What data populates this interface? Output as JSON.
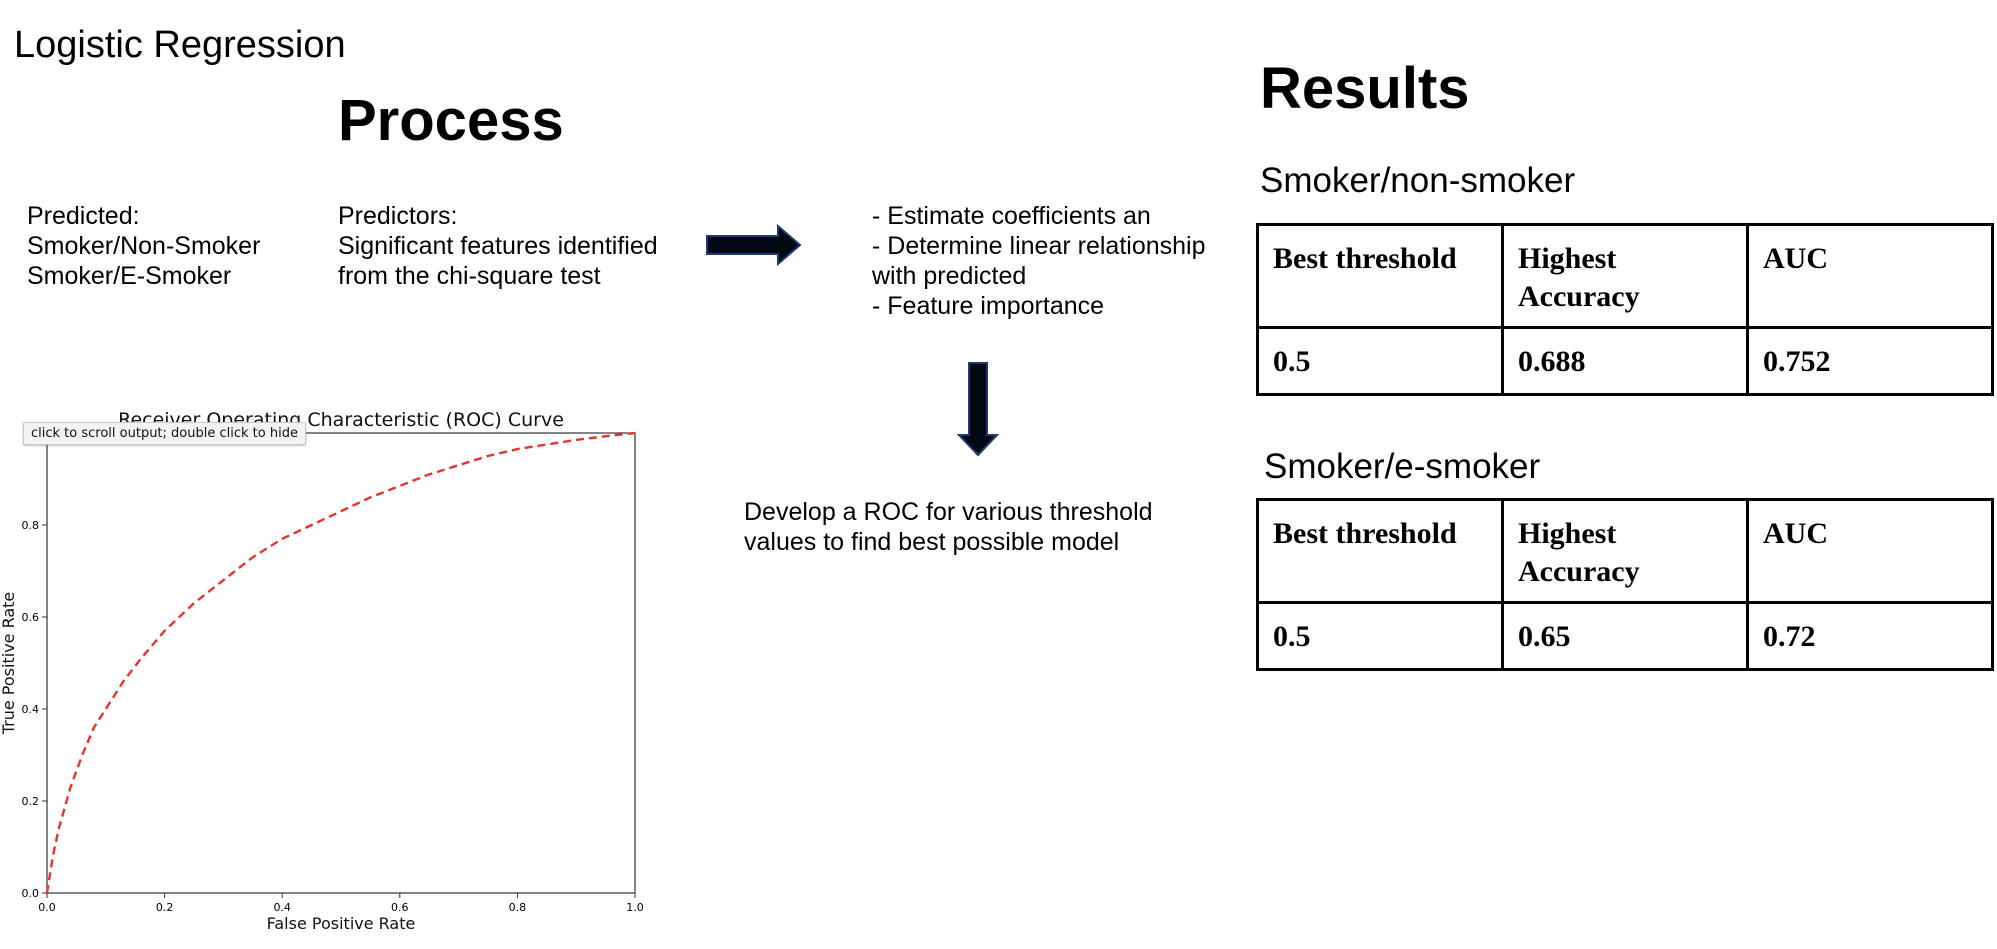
{
  "slide": {
    "title": "Logistic Regression",
    "process_heading": "Process",
    "results_heading": "Results"
  },
  "process": {
    "predicted": "Predicted:\nSmoker/Non-Smoker\nSmoker/E-Smoker",
    "predictors": "Predictors:\nSignificant features identified\nfrom the chi-square test",
    "steps": "- Estimate coefficients an\n- Determine linear relationship\nwith predicted\n- Feature importance",
    "develop": "Develop a ROC for various threshold\nvalues to find best possible model"
  },
  "results": {
    "tables": [
      {
        "subtitle": "Smoker/non-smoker",
        "headers": [
          "Best threshold",
          "Highest\nAccuracy",
          "AUC"
        ],
        "values": [
          "0.5",
          "0.688",
          "0.752"
        ]
      },
      {
        "subtitle": "Smoker/e-smoker",
        "headers": [
          "Best threshold",
          "Highest\nAccuracy",
          "AUC"
        ],
        "values": [
          "0.5",
          "0.65",
          "0.72"
        ]
      }
    ]
  },
  "output_tooltip": "click to scroll output; double click to hide",
  "colors": {
    "curve": "#e8322a",
    "arrow_fill": "#000814",
    "arrow_stroke": "#1f3a73"
  },
  "chart_data": {
    "type": "line",
    "title": "Receiver Operating Characteristic (ROC) Curve",
    "xlabel": "False Positive Rate",
    "ylabel": "True Positive Rate",
    "xlim": [
      0,
      1
    ],
    "ylim": [
      0,
      1
    ],
    "xticks": [
      "0.0",
      "0.2",
      "0.4",
      "0.6",
      "0.8",
      "1.0"
    ],
    "yticks": [
      "0.0",
      "0.2",
      "0.4",
      "0.6",
      "0.8"
    ],
    "grid": false,
    "series": [
      {
        "style": "dashed",
        "x": [
          0.0,
          0.01,
          0.02,
          0.04,
          0.06,
          0.08,
          0.1,
          0.13,
          0.16,
          0.2,
          0.25,
          0.3,
          0.35,
          0.4,
          0.45,
          0.5,
          0.55,
          0.6,
          0.65,
          0.7,
          0.75,
          0.8,
          0.85,
          0.9,
          0.95,
          1.0
        ],
        "y": [
          0.0,
          0.08,
          0.14,
          0.23,
          0.3,
          0.36,
          0.4,
          0.46,
          0.51,
          0.57,
          0.63,
          0.68,
          0.73,
          0.77,
          0.8,
          0.83,
          0.86,
          0.885,
          0.91,
          0.93,
          0.95,
          0.965,
          0.975,
          0.985,
          0.993,
          1.0
        ]
      }
    ]
  }
}
